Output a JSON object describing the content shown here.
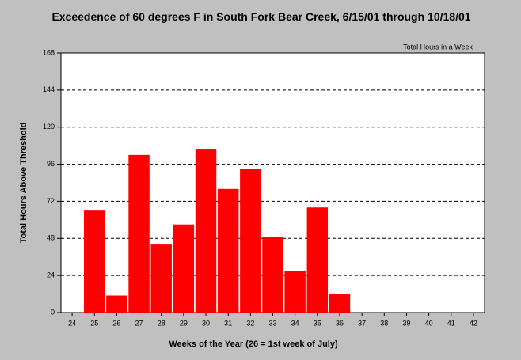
{
  "chart_data": {
    "type": "bar",
    "title": "Exceedence of 60 degrees F in South Fork Bear Creek, 6/15/01 through 10/18/01",
    "annotation": "Total Hours in a Week",
    "x_label": "Weeks of the Year (26 = 1st week of July)",
    "y_label": "Total Hours Above Threshold",
    "categories": [
      "24",
      "25",
      "26",
      "27",
      "28",
      "29",
      "30",
      "31",
      "32",
      "33",
      "34",
      "35",
      "36",
      "37",
      "38",
      "39",
      "40",
      "41",
      "42"
    ],
    "values": [
      null,
      66,
      11,
      102,
      44,
      57,
      106,
      80,
      93,
      49,
      27,
      68,
      12,
      null,
      null,
      null,
      null,
      null,
      null
    ],
    "color": "#ff0000",
    "ylim": [
      0,
      168
    ],
    "yticks": [
      0,
      24,
      48,
      72,
      96,
      120,
      144,
      168
    ],
    "grid": true
  }
}
